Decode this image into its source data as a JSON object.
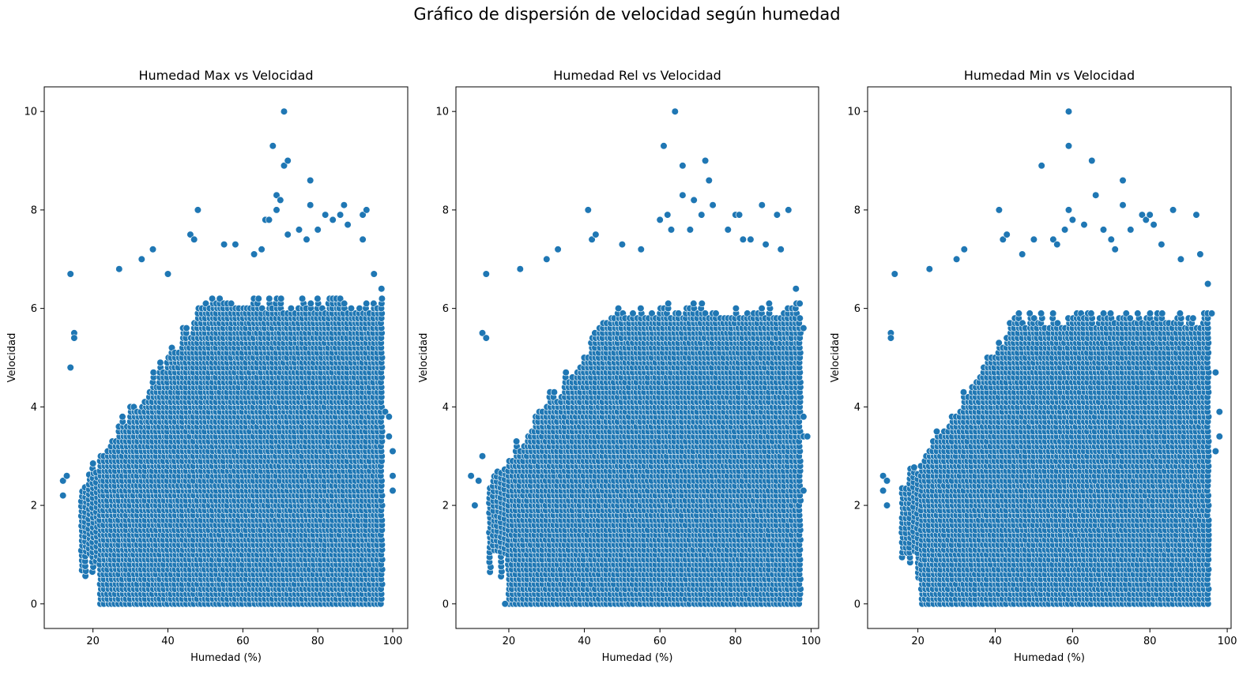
{
  "figure": {
    "suptitle": "Gráfico de dispersión de velocidad según humedad",
    "marker_color": "#1f77b4",
    "marker_edge": "#ffffff"
  },
  "chart_data": [
    {
      "type": "scatter",
      "title": "Humedad Max vs Velocidad",
      "xlabel": "Humedad (%)",
      "ylabel": "Velocidad",
      "xlim": [
        7,
        104
      ],
      "ylim": [
        -0.5,
        10.5
      ],
      "xticks": [
        20,
        40,
        60,
        80,
        100
      ],
      "yticks": [
        0,
        2,
        4,
        6,
        8,
        10
      ],
      "grid": false,
      "bulk": {
        "xmin": 17,
        "xmax": 97,
        "ymin": 0,
        "ymax": 6.3
      },
      "outliers": [
        [
          12,
          2.5
        ],
        [
          12,
          2.2
        ],
        [
          13,
          2.6
        ],
        [
          14,
          6.7
        ],
        [
          14,
          4.8
        ],
        [
          15,
          5.5
        ],
        [
          15,
          5.4
        ],
        [
          27,
          6.8
        ],
        [
          33,
          7.0
        ],
        [
          36,
          7.2
        ],
        [
          40,
          6.7
        ],
        [
          46,
          7.5
        ],
        [
          47,
          7.4
        ],
        [
          48,
          8.0
        ],
        [
          55,
          7.3
        ],
        [
          58,
          7.3
        ],
        [
          63,
          7.1
        ],
        [
          65,
          7.2
        ],
        [
          66,
          7.8
        ],
        [
          67,
          7.8
        ],
        [
          68,
          9.3
        ],
        [
          69,
          8.3
        ],
        [
          69,
          8.0
        ],
        [
          70,
          8.2
        ],
        [
          71,
          10.0
        ],
        [
          71,
          8.9
        ],
        [
          72,
          9.0
        ],
        [
          72,
          7.5
        ],
        [
          75,
          7.6
        ],
        [
          77,
          7.4
        ],
        [
          78,
          8.6
        ],
        [
          78,
          8.1
        ],
        [
          80,
          7.6
        ],
        [
          82,
          7.9
        ],
        [
          84,
          7.8
        ],
        [
          86,
          7.9
        ],
        [
          87,
          8.1
        ],
        [
          88,
          7.7
        ],
        [
          92,
          7.9
        ],
        [
          93,
          8.0
        ],
        [
          92,
          7.4
        ],
        [
          95,
          6.7
        ],
        [
          97,
          6.4
        ],
        [
          98,
          3.9
        ],
        [
          99,
          3.8
        ],
        [
          99,
          3.4
        ],
        [
          100,
          3.1
        ],
        [
          100,
          2.6
        ],
        [
          100,
          2.3
        ]
      ]
    },
    {
      "type": "scatter",
      "title": "Humedad Rel vs Velocidad",
      "xlabel": "Humedad (%)",
      "ylabel": "Velocidad",
      "xlim": [
        6,
        102
      ],
      "ylim": [
        -0.5,
        10.5
      ],
      "xticks": [
        20,
        40,
        60,
        80,
        100
      ],
      "yticks": [
        0,
        2,
        4,
        6,
        8,
        10
      ],
      "grid": false,
      "bulk": {
        "xmin": 15,
        "xmax": 97,
        "ymin": 0,
        "ymax": 6.2
      },
      "outliers": [
        [
          10,
          2.6
        ],
        [
          11,
          2.0
        ],
        [
          12,
          2.5
        ],
        [
          13,
          3.0
        ],
        [
          13,
          5.5
        ],
        [
          14,
          5.4
        ],
        [
          14,
          6.7
        ],
        [
          19,
          0.0
        ],
        [
          23,
          6.8
        ],
        [
          30,
          7.0
        ],
        [
          33,
          7.2
        ],
        [
          41,
          8.0
        ],
        [
          42,
          7.4
        ],
        [
          43,
          7.5
        ],
        [
          50,
          7.3
        ],
        [
          55,
          7.2
        ],
        [
          60,
          7.8
        ],
        [
          61,
          9.3
        ],
        [
          62,
          7.9
        ],
        [
          63,
          7.6
        ],
        [
          64,
          10.0
        ],
        [
          66,
          8.9
        ],
        [
          66,
          8.3
        ],
        [
          68,
          7.6
        ],
        [
          69,
          8.2
        ],
        [
          71,
          7.9
        ],
        [
          72,
          9.0
        ],
        [
          73,
          8.6
        ],
        [
          74,
          8.1
        ],
        [
          78,
          7.6
        ],
        [
          80,
          7.9
        ],
        [
          81,
          7.9
        ],
        [
          82,
          7.4
        ],
        [
          84,
          7.4
        ],
        [
          87,
          8.1
        ],
        [
          88,
          7.3
        ],
        [
          91,
          7.9
        ],
        [
          92,
          7.2
        ],
        [
          94,
          8.0
        ],
        [
          96,
          6.4
        ],
        [
          97,
          6.1
        ],
        [
          98,
          5.6
        ],
        [
          98,
          3.8
        ],
        [
          98,
          3.4
        ],
        [
          99,
          3.4
        ],
        [
          98,
          2.3
        ]
      ]
    },
    {
      "type": "scatter",
      "title": "Humedad Min vs Velocidad",
      "xlabel": "Humedad (%)",
      "ylabel": "Velocidad",
      "xlim": [
        7,
        101
      ],
      "ylim": [
        -0.5,
        10.5
      ],
      "xticks": [
        20,
        40,
        60,
        80,
        100
      ],
      "yticks": [
        0,
        2,
        4,
        6,
        8,
        10
      ],
      "grid": false,
      "bulk": {
        "xmin": 16,
        "xmax": 95,
        "ymin": 0,
        "ymax": 6.0
      },
      "outliers": [
        [
          11,
          2.6
        ],
        [
          11,
          2.3
        ],
        [
          12,
          2.5
        ],
        [
          12,
          2.0
        ],
        [
          13,
          5.5
        ],
        [
          13,
          5.4
        ],
        [
          14,
          6.7
        ],
        [
          23,
          6.8
        ],
        [
          30,
          7.0
        ],
        [
          32,
          7.2
        ],
        [
          41,
          8.0
        ],
        [
          42,
          7.4
        ],
        [
          43,
          7.5
        ],
        [
          47,
          7.1
        ],
        [
          50,
          7.4
        ],
        [
          52,
          8.9
        ],
        [
          55,
          7.4
        ],
        [
          56,
          7.3
        ],
        [
          58,
          7.6
        ],
        [
          59,
          10.0
        ],
        [
          59,
          9.3
        ],
        [
          59,
          8.0
        ],
        [
          60,
          7.8
        ],
        [
          63,
          7.7
        ],
        [
          65,
          9.0
        ],
        [
          66,
          8.3
        ],
        [
          68,
          7.6
        ],
        [
          70,
          7.4
        ],
        [
          71,
          7.2
        ],
        [
          73,
          8.6
        ],
        [
          73,
          8.1
        ],
        [
          75,
          7.6
        ],
        [
          78,
          7.9
        ],
        [
          79,
          7.8
        ],
        [
          80,
          7.9
        ],
        [
          81,
          7.7
        ],
        [
          83,
          7.3
        ],
        [
          86,
          8.0
        ],
        [
          88,
          7.0
        ],
        [
          92,
          7.9
        ],
        [
          93,
          7.1
        ],
        [
          95,
          6.5
        ],
        [
          96,
          5.9
        ],
        [
          97,
          4.7
        ],
        [
          98,
          3.9
        ],
        [
          98,
          3.4
        ],
        [
          97,
          3.1
        ]
      ]
    }
  ]
}
